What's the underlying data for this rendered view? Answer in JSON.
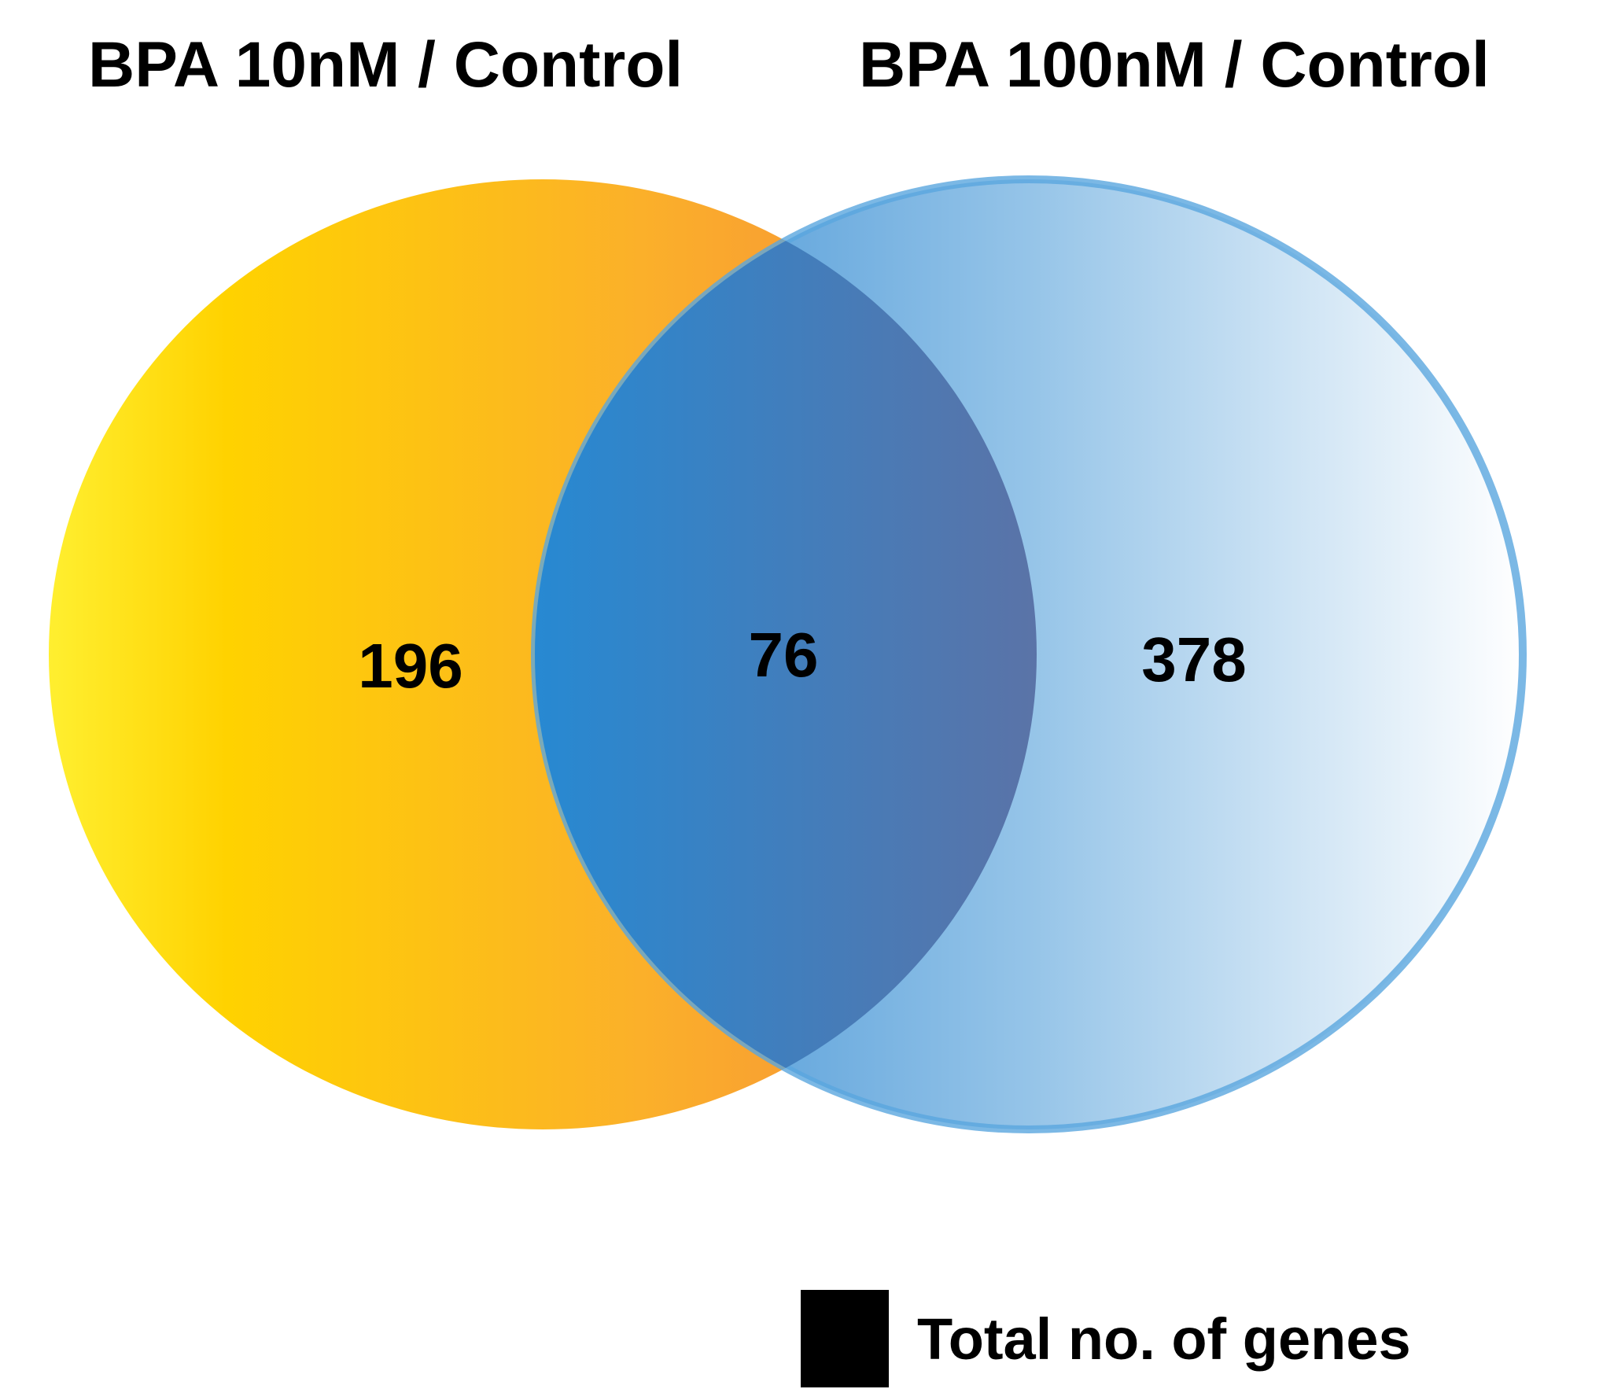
{
  "sets": {
    "left": {
      "label": "BPA 10nM / Control",
      "only_count": "196",
      "colors": [
        "#FFEF30",
        "#FFD200",
        "#FBB02A",
        "#F4873E"
      ]
    },
    "right": {
      "label": "BPA 100nM / Control",
      "only_count": "378",
      "colors": [
        "#3C8FD4",
        "#95C4E8",
        "#FFFFFF"
      ]
    }
  },
  "intersection": {
    "count": "76",
    "colors": [
      "#2789D2",
      "#8C5E7E"
    ]
  },
  "legend": {
    "label": "Total no. of genes",
    "swatch_color": "#000000"
  }
}
